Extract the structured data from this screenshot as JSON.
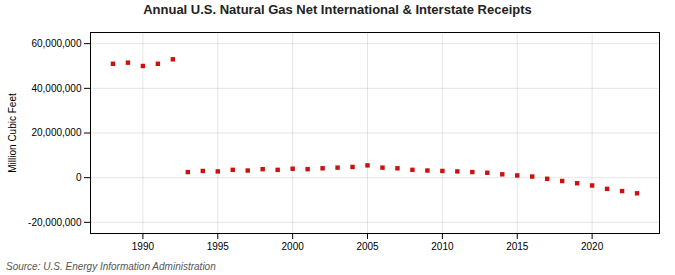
{
  "chart_data": {
    "type": "scatter",
    "title": "Annual U.S. Natural Gas Net International & Interstate Receipts",
    "ylabel": "Million Cubic Feet",
    "source": "Source: U.S. Energy Information Administration",
    "x": [
      1988,
      1989,
      1990,
      1991,
      1992,
      1993,
      1994,
      1995,
      1996,
      1997,
      1998,
      1999,
      2000,
      2001,
      2002,
      2003,
      2004,
      2005,
      2006,
      2007,
      2008,
      2009,
      2010,
      2011,
      2012,
      2013,
      2014,
      2015,
      2016,
      2017,
      2018,
      2019,
      2020,
      2021,
      2022,
      2023
    ],
    "values": [
      51000000,
      51500000,
      50000000,
      51000000,
      53000000,
      2500000,
      3000000,
      2800000,
      3500000,
      3200000,
      3800000,
      3500000,
      4000000,
      3800000,
      4200000,
      4500000,
      4800000,
      5500000,
      4500000,
      4200000,
      3500000,
      3200000,
      3000000,
      2800000,
      2500000,
      2200000,
      1500000,
      1000000,
      500000,
      -500000,
      -1500000,
      -2500000,
      -3500000,
      -5000000,
      -6000000,
      -7000000
    ],
    "color": "#cc1111",
    "marker": "square",
    "xlim": [
      1986.5,
      2024.5
    ],
    "xticks": [
      1990,
      1995,
      2000,
      2005,
      2010,
      2015,
      2020
    ],
    "ylim": [
      -25000000,
      65000000
    ],
    "yticks": [
      {
        "value": -20000000,
        "label": "-20,000,000"
      },
      0,
      {
        "value": 20000000,
        "label": "20,000,000"
      },
      {
        "value": 40000000,
        "label": "40,000,000"
      },
      {
        "value": 60000000,
        "label": "60,000,000"
      }
    ],
    "grid": true
  }
}
